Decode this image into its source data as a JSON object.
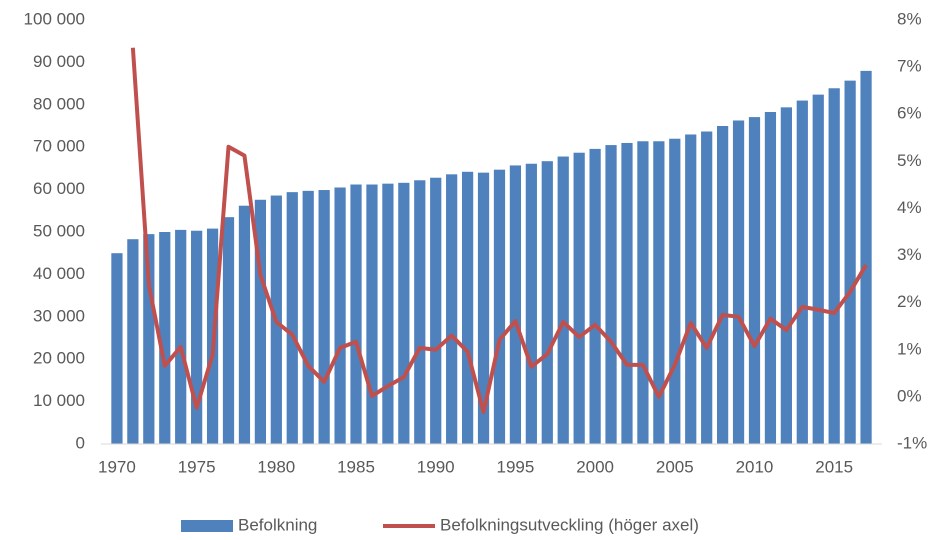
{
  "chart_data": {
    "type": "bar_line",
    "x": [
      1970,
      1971,
      1972,
      1973,
      1974,
      1975,
      1976,
      1977,
      1978,
      1979,
      1980,
      1981,
      1982,
      1983,
      1984,
      1985,
      1986,
      1987,
      1988,
      1989,
      1990,
      1991,
      1992,
      1993,
      1994,
      1995,
      1996,
      1997,
      1998,
      1999,
      2000,
      2001,
      2002,
      2003,
      2004,
      2005,
      2006,
      2007,
      2008,
      2009,
      2010,
      2011,
      2012,
      2013,
      2014,
      2015,
      2016,
      2017
    ],
    "series": [
      {
        "name": "Befolkning",
        "type": "bar",
        "color": "#4f81bd",
        "values": [
          45000,
          48300,
          49500,
          50000,
          50500,
          50300,
          50800,
          53500,
          56200,
          57600,
          58600,
          59400,
          59700,
          59900,
          60500,
          61200,
          61200,
          61400,
          61600,
          62200,
          62800,
          63600,
          64200,
          64000,
          64700,
          65700,
          66100,
          66700,
          67800,
          68700,
          69600,
          70500,
          71000,
          71400,
          71400,
          72000,
          73000,
          73700,
          75000,
          76300,
          77100,
          78300,
          79400,
          81000,
          82400,
          83900,
          85700,
          88000
        ]
      },
      {
        "name": "Befolkningsutveckling (höger axel)",
        "type": "line",
        "axis": "y2",
        "color": "#c0504d",
        "values": [
          null,
          7.41,
          2.38,
          0.66,
          1.06,
          -0.23,
          0.89,
          5.31,
          5.12,
          2.59,
          1.59,
          1.32,
          0.66,
          0.32,
          1.04,
          1.17,
          0.02,
          0.23,
          0.42,
          1.04,
          1.0,
          1.3,
          0.96,
          -0.32,
          1.21,
          1.61,
          0.64,
          0.91,
          1.59,
          1.27,
          1.53,
          1.17,
          0.68,
          0.68,
          0.0,
          0.68,
          1.57,
          1.04,
          1.74,
          1.7,
          1.08,
          1.66,
          1.42,
          1.91,
          1.85,
          1.78,
          2.23,
          2.8
        ]
      }
    ],
    "xlim": [
      1969,
      2018
    ],
    "xticks": [
      1970,
      1975,
      1980,
      1985,
      1990,
      1995,
      2000,
      2005,
      2010,
      2015
    ],
    "ylim": [
      0,
      100000
    ],
    "yticks": [
      0,
      {
        "value": 10000,
        "label": "10 000"
      },
      {
        "value": 20000,
        "label": "20 000"
      },
      {
        "value": 30000,
        "label": "30 000"
      },
      {
        "value": 40000,
        "label": "40 000"
      },
      {
        "value": 50000,
        "label": "50 000"
      },
      {
        "value": 60000,
        "label": "60 000"
      },
      {
        "value": 70000,
        "label": "70 000"
      },
      {
        "value": 80000,
        "label": "80 000"
      },
      {
        "value": 90000,
        "label": "90 000"
      },
      {
        "value": 100000,
        "label": "100 000"
      }
    ],
    "y2lim": [
      -1,
      8
    ],
    "y2ticks": [
      {
        "value": -1,
        "label": "-1%"
      },
      {
        "value": 0,
        "label": "0%"
      },
      {
        "value": 1,
        "label": "1%"
      },
      {
        "value": 2,
        "label": "2%"
      },
      {
        "value": 3,
        "label": "3%"
      },
      {
        "value": 4,
        "label": "4%"
      },
      {
        "value": 5,
        "label": "5%"
      },
      {
        "value": 6,
        "label": "6%"
      },
      {
        "value": 7,
        "label": "7%"
      },
      {
        "value": 8,
        "label": "8%"
      }
    ],
    "legend": "bottom"
  }
}
